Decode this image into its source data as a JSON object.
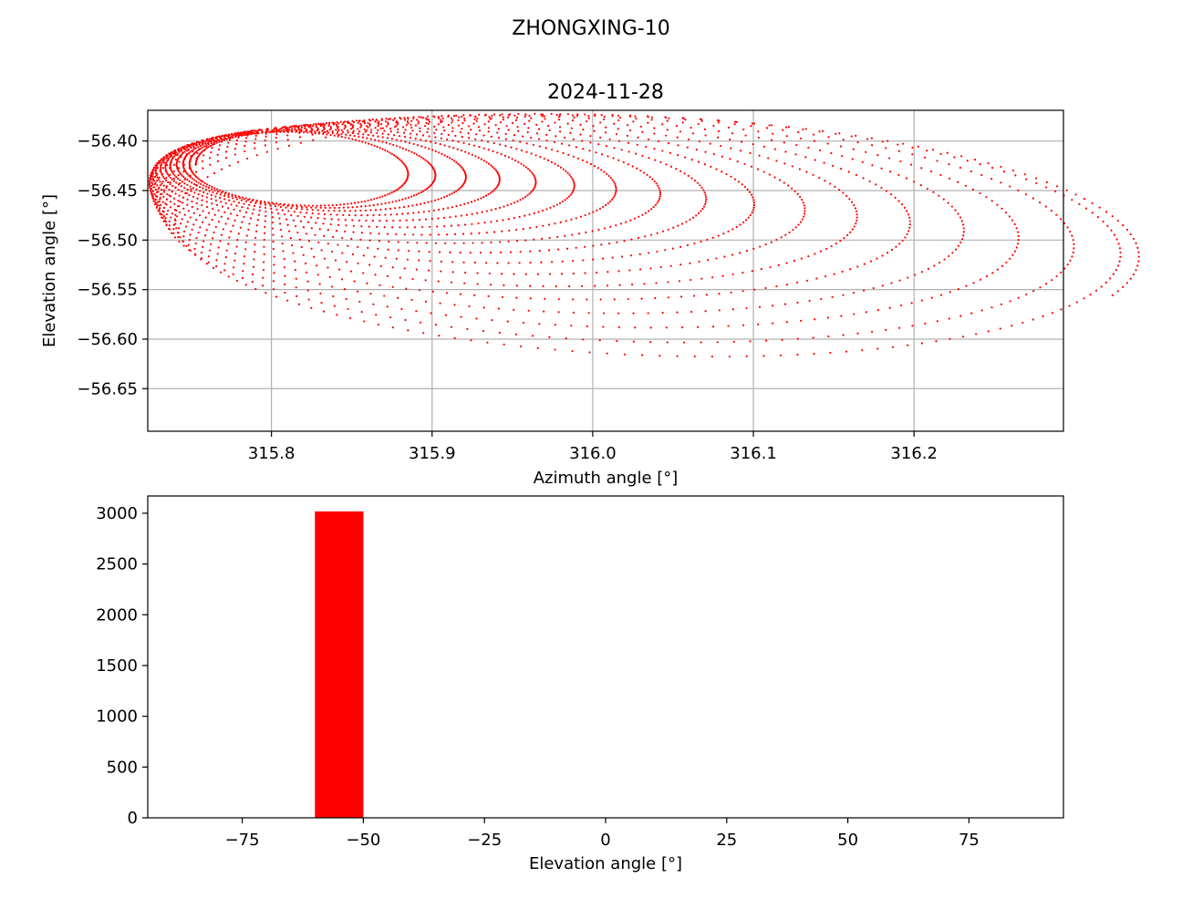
{
  "figure": {
    "suptitle": "ZHONGXING-10",
    "colors": {
      "data": "#ff0000",
      "grid": "#b0b0b0",
      "axis": "#000000"
    }
  },
  "chart_data": [
    {
      "type": "scatter",
      "title": "2024-11-28",
      "xlabel": "Azimuth angle [°]",
      "ylabel": "Elevation angle [°]",
      "xlim": [
        315.723,
        316.293
      ],
      "ylim": [
        -56.693,
        -56.369
      ],
      "xticks": [
        315.8,
        315.9,
        316.0,
        316.1,
        316.2
      ],
      "xtick_labels": [
        "315.8",
        "315.9",
        "316.0",
        "316.1",
        "316.2"
      ],
      "yticks": [
        -56.4,
        -56.45,
        -56.5,
        -56.55,
        -56.6,
        -56.65
      ],
      "ytick_labels": [
        "−56.40",
        "−56.45",
        "−56.50",
        "−56.55",
        "−56.60",
        "−56.65"
      ],
      "grid": true,
      "marker": "dot",
      "color": "#ff0000",
      "series_description": "drifting elliptical loops",
      "loops": [
        {
          "cx": 315.815,
          "cy": -56.4275,
          "rx": 0.062,
          "ry": 0.0365
        },
        {
          "cx": 315.821,
          "cy": -56.428,
          "rx": 0.072,
          "ry": 0.0375
        },
        {
          "cx": 315.828,
          "cy": -56.4288,
          "rx": 0.083,
          "ry": 0.039
        },
        {
          "cx": 315.836,
          "cy": -56.43,
          "rx": 0.095,
          "ry": 0.041
        },
        {
          "cx": 315.845,
          "cy": -56.4318,
          "rx": 0.108,
          "ry": 0.044
        },
        {
          "cx": 315.855,
          "cy": -56.434,
          "rx": 0.121,
          "ry": 0.0475
        },
        {
          "cx": 315.866,
          "cy": -56.4368,
          "rx": 0.135,
          "ry": 0.0515
        },
        {
          "cx": 315.878,
          "cy": -56.44,
          "rx": 0.15,
          "ry": 0.056
        },
        {
          "cx": 315.891,
          "cy": -56.4438,
          "rx": 0.165,
          "ry": 0.061
        },
        {
          "cx": 315.905,
          "cy": -56.448,
          "rx": 0.18,
          "ry": 0.0665
        },
        {
          "cx": 315.92,
          "cy": -56.4525,
          "rx": 0.196,
          "ry": 0.0725
        },
        {
          "cx": 315.936,
          "cy": -56.4575,
          "rx": 0.212,
          "ry": 0.079
        },
        {
          "cx": 315.953,
          "cy": -56.463,
          "rx": 0.228,
          "ry": 0.086
        },
        {
          "cx": 315.97,
          "cy": -56.469,
          "rx": 0.244,
          "ry": 0.0935
        },
        {
          "cx": 315.988,
          "cy": -56.4755,
          "rx": 0.26,
          "ry": 0.101
        },
        {
          "cx": 316.006,
          "cy": -56.4825,
          "rx": 0.276,
          "ry": 0.1085
        },
        {
          "cx": 316.025,
          "cy": -56.49,
          "rx": 0.292,
          "ry": 0.116
        },
        {
          "cx": 316.04,
          "cy": -56.498,
          "rx": 0.3,
          "ry": 0.122
        }
      ]
    },
    {
      "type": "bar",
      "title": "",
      "xlabel": "Elevation angle [°]",
      "ylabel": "",
      "xlim": [
        -94.5,
        94.5
      ],
      "ylim": [
        0,
        3170
      ],
      "bins": [
        {
          "x0": -60,
          "x1": -50,
          "count": 3018
        }
      ],
      "xticks": [
        -75,
        -50,
        -25,
        0,
        25,
        50,
        75
      ],
      "xtick_labels": [
        "−75",
        "−50",
        "−25",
        "0",
        "25",
        "50",
        "75"
      ],
      "yticks": [
        0,
        500,
        1000,
        1500,
        2000,
        2500,
        3000
      ],
      "ytick_labels": [
        "0",
        "500",
        "1000",
        "1500",
        "2000",
        "2500",
        "3000"
      ],
      "grid": false,
      "color": "#ff0000"
    }
  ]
}
